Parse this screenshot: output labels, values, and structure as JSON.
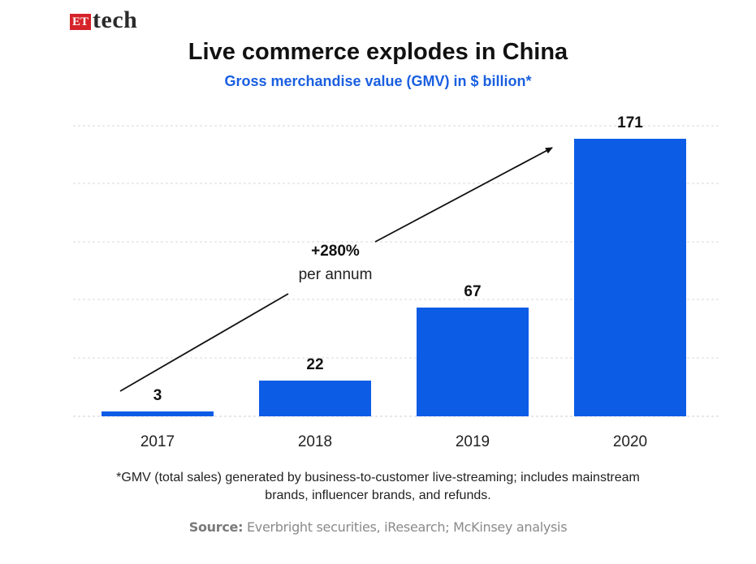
{
  "brand": {
    "box": "ET",
    "word": "tech"
  },
  "chart_data": {
    "type": "bar",
    "title": "Live commerce explodes in China",
    "subtitle": "Gross merchandise value (GMV) in $ billion*",
    "categories": [
      "2017",
      "2018",
      "2019",
      "2020"
    ],
    "values": [
      3,
      22,
      67,
      171
    ],
    "value_labels": [
      "3",
      "22",
      "67",
      "171"
    ],
    "ylim": [
      0,
      180
    ],
    "grid": true,
    "bar_color": "#0d5ce6",
    "annotation": {
      "main": "+280%",
      "sub": "per annum"
    }
  },
  "footnote": {
    "line1": "*GMV (total sales) generated by business-to-customer live-streaming; includes mainstream",
    "line2": "brands, influencer brands, and refunds."
  },
  "source": {
    "label": "Source:",
    "text": "Everbright securities, iResearch; McKinsey analysis"
  }
}
